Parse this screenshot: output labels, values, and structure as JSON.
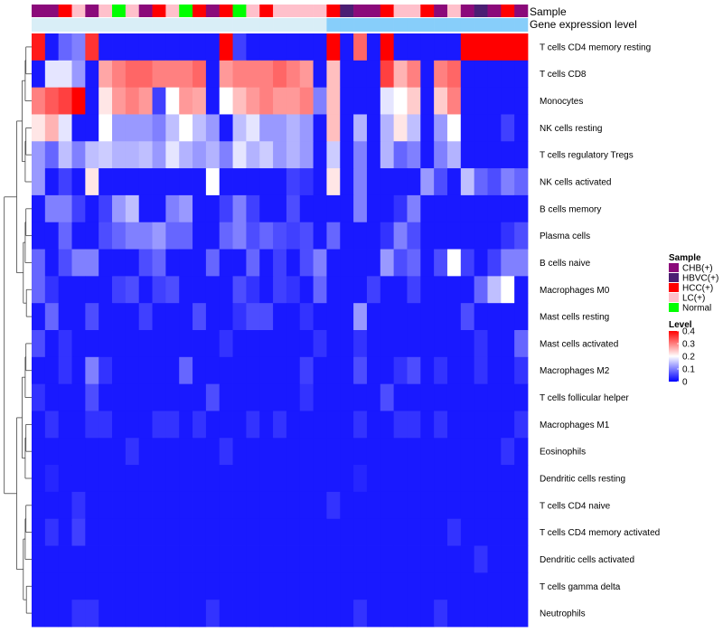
{
  "chart_data": {
    "type": "heatmap",
    "title": "",
    "annotation_tracks": [
      "Sample",
      "Gene expression level"
    ],
    "rows": [
      "T cells CD4 memory resting",
      "T cells CD8",
      "Monocytes",
      "NK cells resting",
      "T cells regulatory  Tregs",
      "NK cells activated",
      "B cells memory",
      "Plasma cells",
      "B cells naive",
      "Macrophages M0",
      "Mast cells resting",
      "Mast cells activated",
      "Macrophages M2",
      "T cells follicular helper",
      "Macrophages M1",
      "Eosinophils",
      "Dendritic cells resting",
      "T cells CD4 naive",
      "T cells CD4 memory activated",
      "Dendritic cells activated",
      "T cells gamma delta",
      "Neutrophils"
    ],
    "column_samples": [
      "CHB(+)",
      "CHB(+)",
      "HCC(+)",
      "LC(+)",
      "CHB(+)",
      "LC(+)",
      "Normal",
      "LC(+)",
      "CHB(+)",
      "HCC(+)",
      "LC(+)",
      "Normal",
      "HCC(+)",
      "CHB(+)",
      "HCC(+)",
      "Normal",
      "LC(+)",
      "HCC(+)",
      "LC(+)",
      "LC(+)",
      "LC(+)",
      "LC(+)",
      "HCC(+)",
      "HBVC(+)",
      "CHB(+)",
      "CHB(+)",
      "HCC(+)",
      "LC(+)",
      "LC(+)",
      "HCC(+)",
      "CHB(+)",
      "LC(+)",
      "CHB(+)",
      "HBVC(+)",
      "CHB(+)",
      "HCC(+)",
      "CHB(+)"
    ],
    "column_expression": [
      "#d9eef7",
      "#d9eef7",
      "#d9eef7",
      "#d9eef7",
      "#d9eef7",
      "#d9eef7",
      "#d9eef7",
      "#d9eef7",
      "#d9eef7",
      "#d9eef7",
      "#d9eef7",
      "#d9eef7",
      "#d9eef7",
      "#d9eef7",
      "#d9eef7",
      "#d9eef7",
      "#d9eef7",
      "#d9eef7",
      "#d9eef7",
      "#d9eef7",
      "#d9eef7",
      "#d9eef7",
      "#87cefa",
      "#87cefa",
      "#87cefa",
      "#87cefa",
      "#87cefa",
      "#87cefa",
      "#87cefa",
      "#87cefa",
      "#87cefa",
      "#87cefa",
      "#87cefa",
      "#87cefa",
      "#87cefa",
      "#87cefa",
      "#87cefa"
    ],
    "values": [
      [
        0.38,
        0.02,
        0.08,
        0.1,
        0.36,
        0.02,
        0.02,
        0.02,
        0.02,
        0.02,
        0.02,
        0.02,
        0.02,
        0.02,
        0.4,
        0.05,
        0.02,
        0.02,
        0.02,
        0.02,
        0.02,
        0.02,
        0.4,
        0.02,
        0.32,
        0.02,
        0.4,
        0.02,
        0.02,
        0.02,
        0.02,
        0.02,
        0.4,
        0.4,
        0.4,
        0.4,
        0.4
      ],
      [
        0.02,
        0.18,
        0.18,
        0.12,
        0.02,
        0.27,
        0.3,
        0.32,
        0.32,
        0.3,
        0.3,
        0.3,
        0.32,
        0.02,
        0.28,
        0.3,
        0.3,
        0.3,
        0.32,
        0.3,
        0.28,
        0.02,
        0.25,
        0.02,
        0.02,
        0.02,
        0.35,
        0.26,
        0.3,
        0.02,
        0.3,
        0.32,
        0.02,
        0.02,
        0.02,
        0.02,
        0.02
      ],
      [
        0.3,
        0.33,
        0.35,
        0.4,
        0.02,
        0.22,
        0.28,
        0.3,
        0.28,
        0.05,
        0.2,
        0.28,
        0.27,
        0.02,
        0.2,
        0.25,
        0.28,
        0.3,
        0.28,
        0.28,
        0.3,
        0.1,
        0.25,
        0.02,
        0.02,
        0.02,
        0.18,
        0.2,
        0.24,
        0.02,
        0.24,
        0.3,
        0.02,
        0.02,
        0.02,
        0.02,
        0.02
      ],
      [
        0.22,
        0.26,
        0.18,
        0.02,
        0.02,
        0.2,
        0.12,
        0.12,
        0.12,
        0.1,
        0.15,
        0.2,
        0.15,
        0.12,
        0.02,
        0.15,
        0.18,
        0.12,
        0.12,
        0.14,
        0.12,
        0.02,
        0.25,
        0.02,
        0.14,
        0.02,
        0.14,
        0.22,
        0.15,
        0.02,
        0.12,
        0.2,
        0.02,
        0.02,
        0.02,
        0.05,
        0.02
      ],
      [
        0.12,
        0.08,
        0.15,
        0.1,
        0.15,
        0.16,
        0.14,
        0.14,
        0.15,
        0.12,
        0.18,
        0.14,
        0.12,
        0.14,
        0.1,
        0.18,
        0.14,
        0.16,
        0.12,
        0.14,
        0.12,
        0.02,
        0.16,
        0.02,
        0.1,
        0.02,
        0.14,
        0.08,
        0.1,
        0.02,
        0.1,
        0.14,
        0.02,
        0.02,
        0.02,
        0.02,
        0.02
      ],
      [
        0.12,
        0.02,
        0.05,
        0.02,
        0.22,
        0.02,
        0.02,
        0.02,
        0.02,
        0.02,
        0.02,
        0.02,
        0.02,
        0.2,
        0.02,
        0.02,
        0.02,
        0.02,
        0.02,
        0.05,
        0.04,
        0.02,
        0.22,
        0.02,
        0.1,
        0.02,
        0.02,
        0.02,
        0.02,
        0.12,
        0.06,
        0.02,
        0.15,
        0.08,
        0.06,
        0.1,
        0.08
      ],
      [
        0.02,
        0.1,
        0.1,
        0.05,
        0.02,
        0.05,
        0.12,
        0.15,
        0.02,
        0.02,
        0.1,
        0.12,
        0.02,
        0.02,
        0.05,
        0.1,
        0.05,
        0.02,
        0.02,
        0.06,
        0.02,
        0.02,
        0.02,
        0.02,
        0.1,
        0.02,
        0.02,
        0.04,
        0.1,
        0.02,
        0.02,
        0.02,
        0.02,
        0.02,
        0.02,
        0.02,
        0.02
      ],
      [
        0.02,
        0.02,
        0.08,
        0.02,
        0.02,
        0.06,
        0.08,
        0.1,
        0.1,
        0.12,
        0.08,
        0.08,
        0.02,
        0.02,
        0.08,
        0.1,
        0.06,
        0.08,
        0.06,
        0.05,
        0.06,
        0.02,
        0.08,
        0.02,
        0.02,
        0.02,
        0.04,
        0.1,
        0.06,
        0.02,
        0.02,
        0.02,
        0.02,
        0.02,
        0.02,
        0.04,
        0.06
      ],
      [
        0.08,
        0.02,
        0.06,
        0.1,
        0.1,
        0.02,
        0.02,
        0.02,
        0.06,
        0.08,
        0.02,
        0.02,
        0.02,
        0.08,
        0.02,
        0.02,
        0.08,
        0.02,
        0.05,
        0.02,
        0.06,
        0.1,
        0.02,
        0.02,
        0.02,
        0.02,
        0.12,
        0.06,
        0.08,
        0.02,
        0.06,
        0.2,
        0.05,
        0.02,
        0.05,
        0.1,
        0.1
      ],
      [
        0.08,
        0.04,
        0.02,
        0.02,
        0.02,
        0.02,
        0.05,
        0.06,
        0.02,
        0.05,
        0.06,
        0.02,
        0.02,
        0.02,
        0.02,
        0.06,
        0.04,
        0.02,
        0.05,
        0.04,
        0.02,
        0.08,
        0.02,
        0.02,
        0.02,
        0.05,
        0.02,
        0.02,
        0.05,
        0.02,
        0.02,
        0.02,
        0.02,
        0.08,
        0.15,
        0.2,
        0.02
      ],
      [
        0.02,
        0.08,
        0.02,
        0.02,
        0.06,
        0.02,
        0.02,
        0.02,
        0.05,
        0.02,
        0.02,
        0.02,
        0.06,
        0.02,
        0.02,
        0.04,
        0.06,
        0.06,
        0.02,
        0.02,
        0.04,
        0.02,
        0.02,
        0.02,
        0.12,
        0.02,
        0.02,
        0.02,
        0.02,
        0.02,
        0.02,
        0.02,
        0.06,
        0.02,
        0.02,
        0.02,
        0.02
      ],
      [
        0.06,
        0.02,
        0.04,
        0.02,
        0.02,
        0.02,
        0.02,
        0.02,
        0.02,
        0.02,
        0.02,
        0.02,
        0.02,
        0.02,
        0.04,
        0.02,
        0.02,
        0.02,
        0.02,
        0.02,
        0.02,
        0.04,
        0.02,
        0.02,
        0.04,
        0.02,
        0.02,
        0.02,
        0.02,
        0.02,
        0.02,
        0.02,
        0.02,
        0.04,
        0.02,
        0.02,
        0.08
      ],
      [
        0.02,
        0.02,
        0.04,
        0.02,
        0.1,
        0.04,
        0.02,
        0.02,
        0.02,
        0.02,
        0.02,
        0.08,
        0.02,
        0.02,
        0.02,
        0.02,
        0.02,
        0.02,
        0.02,
        0.02,
        0.05,
        0.02,
        0.02,
        0.02,
        0.06,
        0.02,
        0.02,
        0.04,
        0.06,
        0.02,
        0.04,
        0.02,
        0.02,
        0.04,
        0.02,
        0.02,
        0.04
      ],
      [
        0.04,
        0.02,
        0.02,
        0.02,
        0.06,
        0.02,
        0.02,
        0.02,
        0.02,
        0.02,
        0.02,
        0.02,
        0.02,
        0.06,
        0.02,
        0.02,
        0.02,
        0.02,
        0.02,
        0.02,
        0.04,
        0.02,
        0.02,
        0.02,
        0.02,
        0.02,
        0.06,
        0.02,
        0.02,
        0.02,
        0.02,
        0.02,
        0.02,
        0.02,
        0.02,
        0.02,
        0.02
      ],
      [
        0.02,
        0.04,
        0.02,
        0.02,
        0.04,
        0.04,
        0.02,
        0.02,
        0.02,
        0.04,
        0.04,
        0.02,
        0.04,
        0.02,
        0.02,
        0.02,
        0.04,
        0.02,
        0.04,
        0.02,
        0.02,
        0.02,
        0.02,
        0.02,
        0.04,
        0.02,
        0.02,
        0.04,
        0.04,
        0.02,
        0.04,
        0.02,
        0.02,
        0.02,
        0.02,
        0.02,
        0.04
      ],
      [
        0.02,
        0.02,
        0.02,
        0.02,
        0.02,
        0.02,
        0.02,
        0.04,
        0.02,
        0.02,
        0.02,
        0.02,
        0.02,
        0.02,
        0.04,
        0.02,
        0.02,
        0.02,
        0.02,
        0.02,
        0.02,
        0.02,
        0.02,
        0.02,
        0.02,
        0.02,
        0.02,
        0.02,
        0.02,
        0.02,
        0.02,
        0.02,
        0.02,
        0.02,
        0.02,
        0.04,
        0.02
      ],
      [
        0.02,
        0.03,
        0.02,
        0.02,
        0.02,
        0.02,
        0.02,
        0.02,
        0.02,
        0.02,
        0.02,
        0.02,
        0.02,
        0.02,
        0.02,
        0.02,
        0.02,
        0.02,
        0.02,
        0.02,
        0.02,
        0.02,
        0.02,
        0.02,
        0.03,
        0.02,
        0.02,
        0.02,
        0.02,
        0.02,
        0.02,
        0.02,
        0.02,
        0.02,
        0.02,
        0.02,
        0.02
      ],
      [
        0.02,
        0.02,
        0.02,
        0.04,
        0.02,
        0.02,
        0.02,
        0.02,
        0.02,
        0.02,
        0.02,
        0.02,
        0.02,
        0.02,
        0.02,
        0.02,
        0.02,
        0.02,
        0.02,
        0.02,
        0.02,
        0.02,
        0.04,
        0.02,
        0.02,
        0.02,
        0.02,
        0.02,
        0.02,
        0.02,
        0.02,
        0.02,
        0.02,
        0.02,
        0.02,
        0.02,
        0.02
      ],
      [
        0.02,
        0.04,
        0.02,
        0.05,
        0.02,
        0.02,
        0.02,
        0.02,
        0.02,
        0.02,
        0.02,
        0.02,
        0.02,
        0.02,
        0.02,
        0.02,
        0.02,
        0.02,
        0.02,
        0.02,
        0.02,
        0.02,
        0.02,
        0.02,
        0.02,
        0.02,
        0.02,
        0.02,
        0.02,
        0.02,
        0.02,
        0.04,
        0.02,
        0.02,
        0.02,
        0.02,
        0.02
      ],
      [
        0.02,
        0.02,
        0.02,
        0.02,
        0.02,
        0.02,
        0.02,
        0.02,
        0.02,
        0.02,
        0.02,
        0.02,
        0.02,
        0.02,
        0.02,
        0.02,
        0.02,
        0.02,
        0.02,
        0.02,
        0.02,
        0.02,
        0.02,
        0.02,
        0.02,
        0.02,
        0.02,
        0.02,
        0.02,
        0.02,
        0.02,
        0.02,
        0.02,
        0.04,
        0.02,
        0.02,
        0.02
      ],
      [
        0.02,
        0.02,
        0.02,
        0.02,
        0.02,
        0.02,
        0.02,
        0.02,
        0.02,
        0.02,
        0.02,
        0.02,
        0.02,
        0.02,
        0.02,
        0.02,
        0.02,
        0.02,
        0.02,
        0.02,
        0.02,
        0.02,
        0.02,
        0.02,
        0.02,
        0.02,
        0.02,
        0.02,
        0.02,
        0.02,
        0.02,
        0.02,
        0.02,
        0.02,
        0.02,
        0.02,
        0.02
      ],
      [
        0.02,
        0.02,
        0.02,
        0.04,
        0.04,
        0.02,
        0.02,
        0.02,
        0.02,
        0.02,
        0.02,
        0.02,
        0.02,
        0.04,
        0.02,
        0.02,
        0.02,
        0.02,
        0.02,
        0.02,
        0.02,
        0.02,
        0.02,
        0.02,
        0.04,
        0.02,
        0.02,
        0.02,
        0.02,
        0.02,
        0.04,
        0.02,
        0.02,
        0.02,
        0.02,
        0.02,
        0.02
      ]
    ],
    "legend": {
      "sample_title": "Sample",
      "sample_items": [
        {
          "label": "CHB(+)",
          "color": "#8b0a7a"
        },
        {
          "label": "HBVC(+)",
          "color": "#4b1e73"
        },
        {
          "label": "HCC(+)",
          "color": "#ff0000"
        },
        {
          "label": "LC(+)",
          "color": "#ffc0cb"
        },
        {
          "label": "Normal",
          "color": "#00ff00"
        }
      ],
      "level_title": "Level",
      "level_ticks": [
        "0.4",
        "0.3",
        "0.2",
        "0.1",
        "0"
      ],
      "level_tick_values": [
        0.4,
        0.3,
        0.2,
        0.1,
        0
      ],
      "level_range": [
        0,
        0.4
      ]
    },
    "color_scale": {
      "low": "#0000ff",
      "mid": "#ffffff",
      "high": "#ff0000",
      "midpoint": 0.2
    }
  }
}
